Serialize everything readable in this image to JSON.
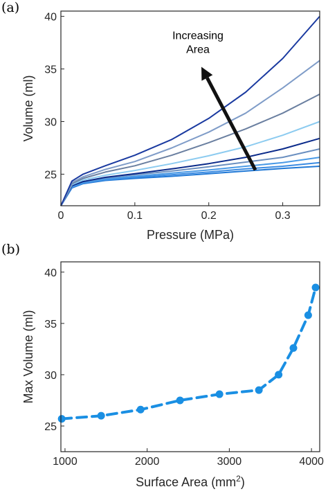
{
  "chart_data": [
    {
      "type": "line",
      "panel_label": "(a)",
      "xlabel": "Pressure (MPa)",
      "ylabel": "Volume (ml)",
      "xlim": [
        0,
        0.35
      ],
      "ylim": [
        22,
        40.5
      ],
      "xticks": [
        0,
        0.1,
        0.2,
        0.3
      ],
      "xtick_labels": [
        "0",
        "0.1",
        "0.2",
        "0.3"
      ],
      "yticks": [
        25,
        30,
        35,
        40
      ],
      "ytick_labels": [
        "25",
        "30",
        "35",
        "40"
      ],
      "grid": false,
      "annotation": {
        "text_lines": [
          "Increasing",
          "Area"
        ],
        "arrow_from": [
          0.263,
          25.4
        ],
        "arrow_to": [
          0.19,
          35.2
        ]
      },
      "x": [
        0,
        0.015,
        0.03,
        0.06,
        0.1,
        0.15,
        0.2,
        0.25,
        0.3,
        0.35
      ],
      "series": [
        {
          "color": "#1f78d6",
          "values": [
            22.0,
            23.7,
            24.1,
            24.4,
            24.6,
            24.8,
            25.05,
            25.3,
            25.55,
            25.75
          ]
        },
        {
          "color": "#3a8be2",
          "values": [
            22.0,
            23.75,
            24.15,
            24.45,
            24.7,
            24.95,
            25.2,
            25.5,
            25.75,
            26.1
          ]
        },
        {
          "color": "#4a9ae6",
          "values": [
            22.0,
            23.8,
            24.2,
            24.55,
            24.8,
            25.1,
            25.4,
            25.75,
            26.1,
            26.6
          ]
        },
        {
          "color": "#6a8fc0",
          "values": [
            22.0,
            23.9,
            24.3,
            24.65,
            24.95,
            25.3,
            25.7,
            26.15,
            26.6,
            27.4
          ]
        },
        {
          "color": "#0a2a8a",
          "values": [
            22.0,
            23.9,
            24.3,
            24.7,
            25.05,
            25.5,
            26.0,
            26.6,
            27.4,
            28.4
          ]
        },
        {
          "color": "#8ccbf0",
          "values": [
            22.0,
            24.0,
            24.45,
            24.9,
            25.35,
            26.0,
            26.75,
            27.6,
            28.7,
            30.0
          ]
        },
        {
          "color": "#6a7fa0",
          "values": [
            22.0,
            24.1,
            24.6,
            25.2,
            25.8,
            26.8,
            28.0,
            29.3,
            30.8,
            32.6
          ]
        },
        {
          "color": "#7f9cc8",
          "values": [
            22.0,
            24.2,
            24.75,
            25.45,
            26.2,
            27.5,
            29.0,
            30.8,
            33.2,
            35.8
          ]
        },
        {
          "color": "#1a3aa0",
          "values": [
            22.0,
            24.35,
            25.0,
            25.8,
            26.8,
            28.3,
            30.3,
            32.8,
            36.0,
            40.0
          ]
        }
      ]
    },
    {
      "type": "line",
      "panel_label": "(b)",
      "xlabel_main": "Surface Area (mm",
      "xlabel_sup": "2",
      "xlabel_end": ")",
      "ylabel": "Max Volume (ml)",
      "xlim": [
        950,
        4100
      ],
      "ylim": [
        22.5,
        41
      ],
      "xticks": [
        1000,
        2000,
        3000,
        4000
      ],
      "xtick_labels": [
        "1000",
        "2000",
        "3000",
        "4000"
      ],
      "yticks": [
        25,
        30,
        35,
        40
      ],
      "ytick_labels": [
        "25",
        "30",
        "35",
        "40"
      ],
      "grid": false,
      "line_style": "dashed with circle markers",
      "color": "#1a8fe3",
      "x": [
        960,
        1440,
        1920,
        2400,
        2880,
        3360,
        3600,
        3780,
        3960,
        4050
      ],
      "y": [
        25.7,
        26.0,
        26.6,
        27.5,
        28.1,
        28.5,
        30.0,
        32.6,
        35.8,
        38.5
      ]
    }
  ]
}
